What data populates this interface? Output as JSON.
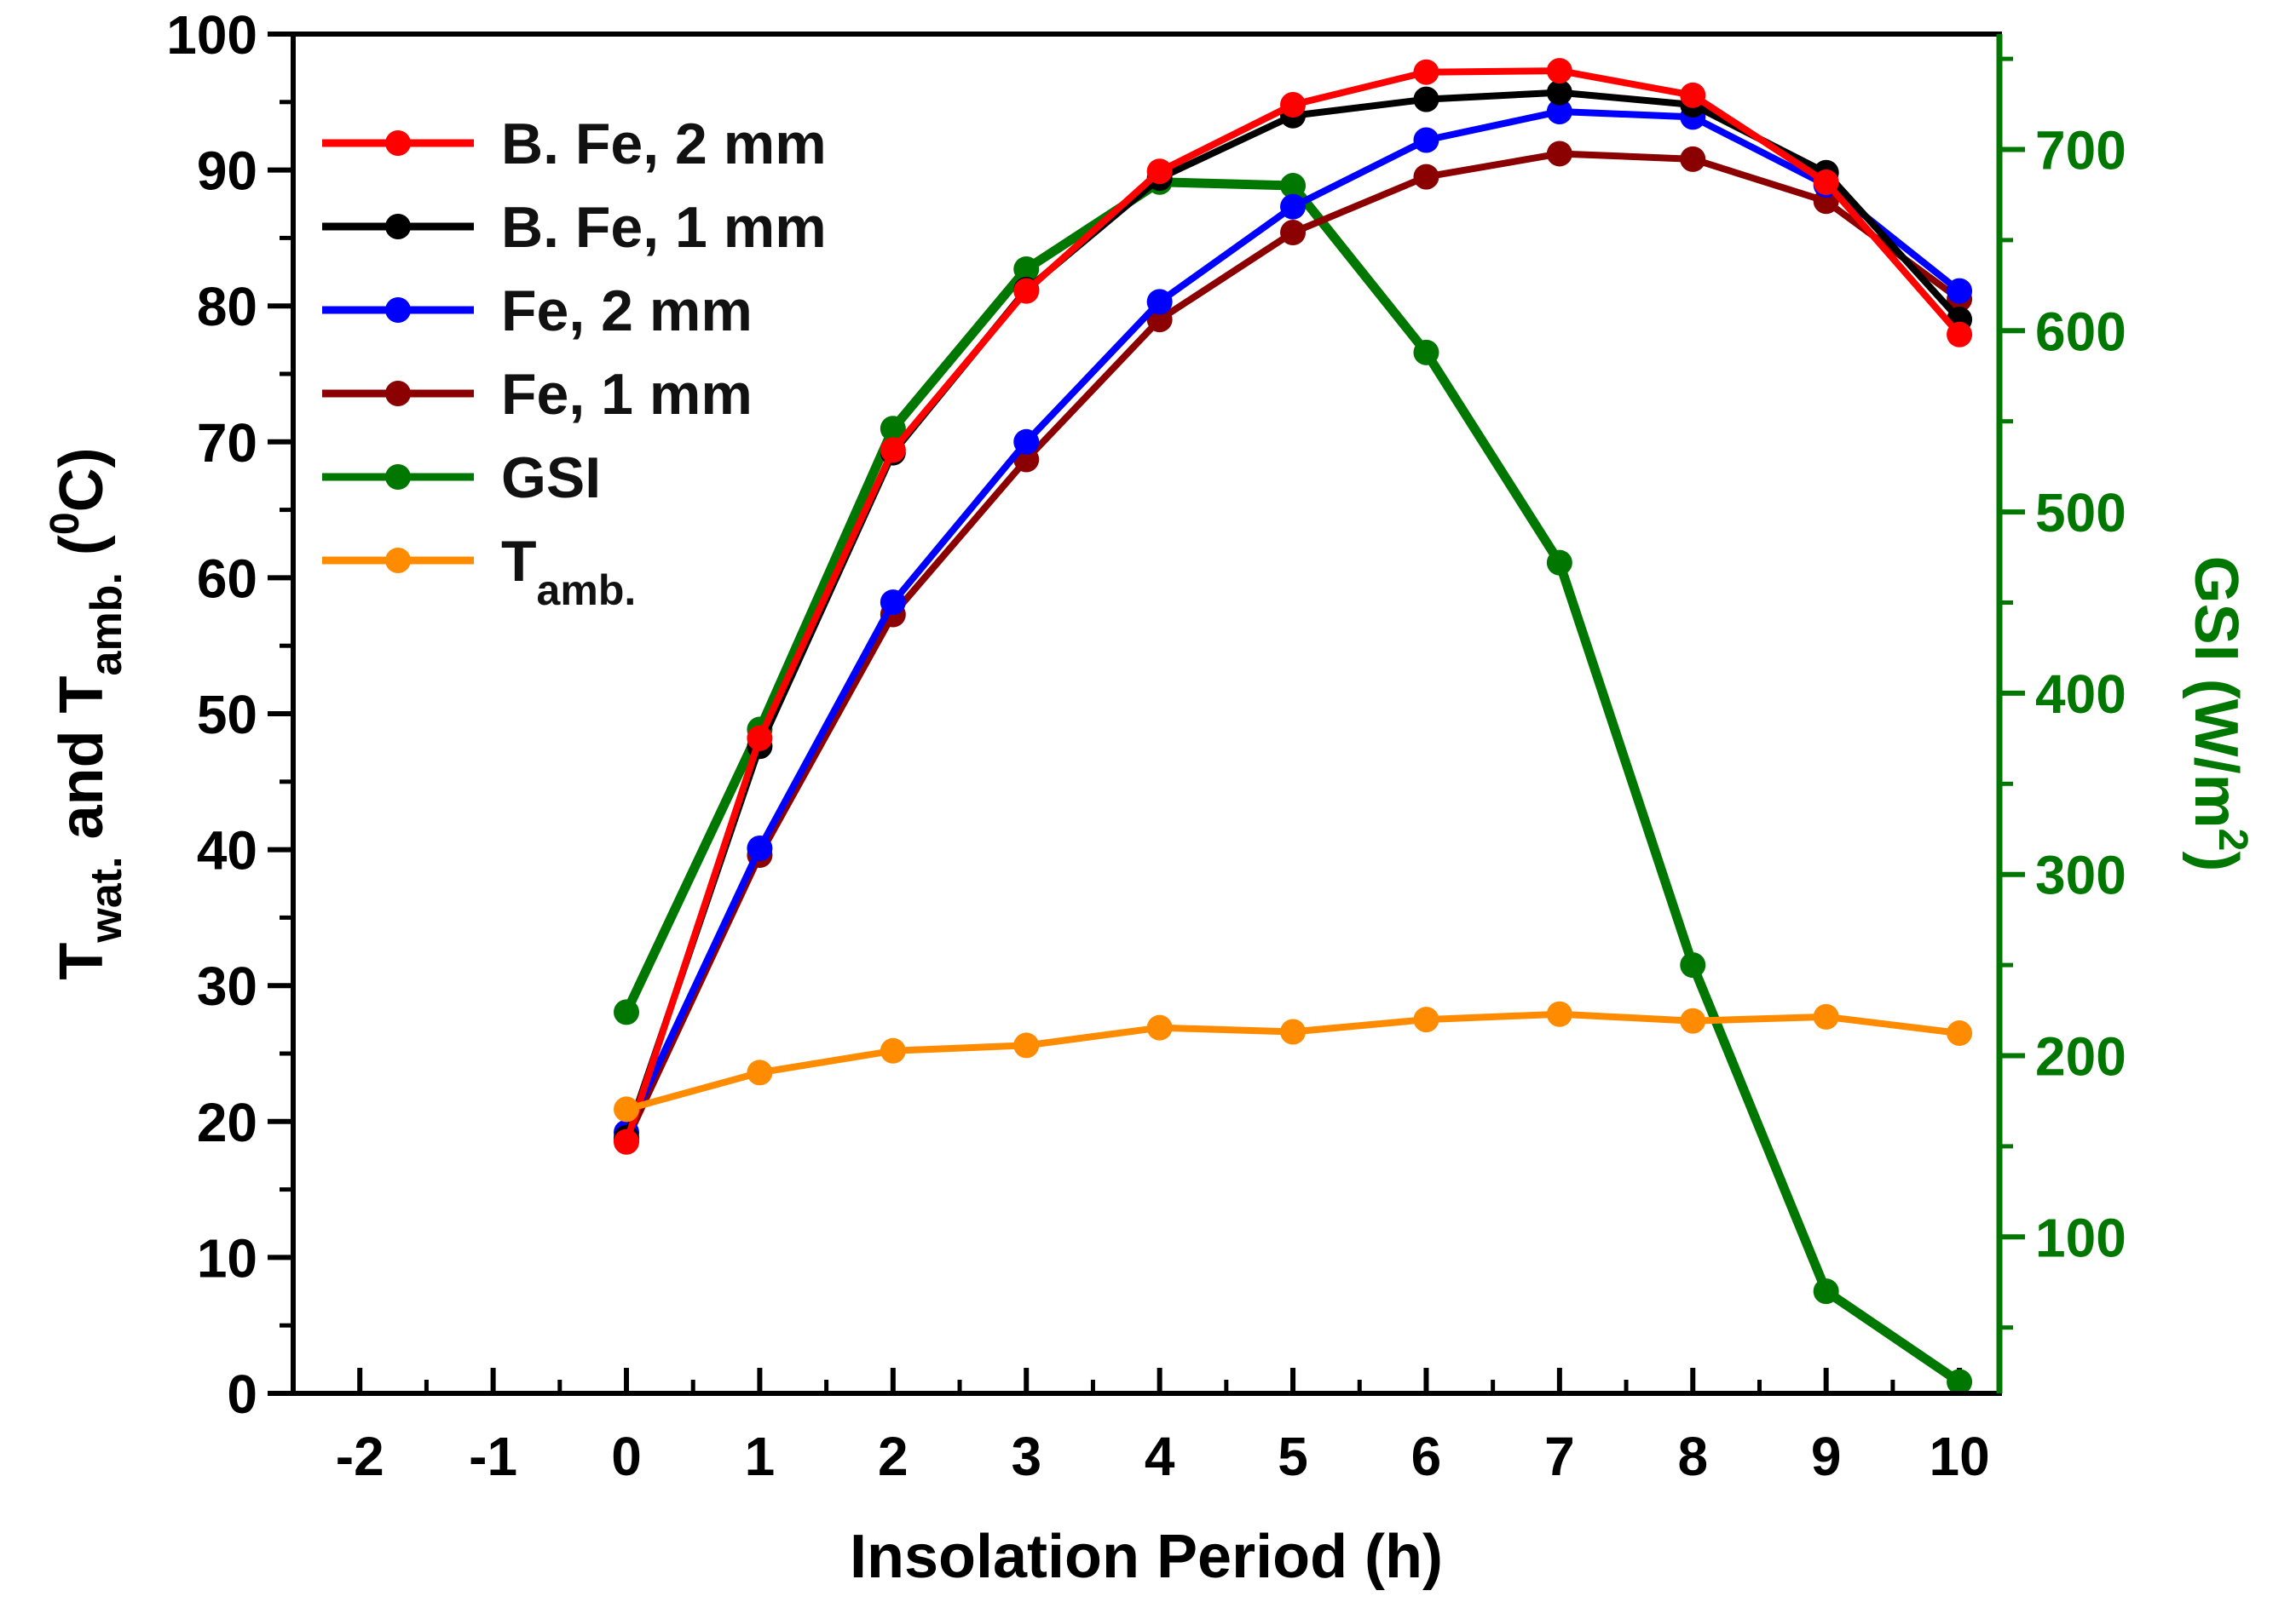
{
  "chart_data": {
    "type": "line",
    "title": "",
    "xlabel": "Insolation Period (h)",
    "ylabel": {
      "parts": [
        "T",
        "wat.",
        " and T",
        "amb.",
        " (",
        "0",
        "C)"
      ]
    },
    "y2label": {
      "parts": [
        "GSI (W/m",
        "2",
        ")"
      ]
    },
    "xlim": [
      -2.5,
      10.3
    ],
    "ylim": [
      0,
      100
    ],
    "y2lim": [
      13.67,
      763.67
    ],
    "x_ticks": [
      -2,
      -1,
      0,
      1,
      2,
      3,
      4,
      5,
      6,
      7,
      8,
      9,
      10
    ],
    "x_tick_labels": [
      "-2",
      "-1",
      "0",
      "1",
      "2",
      "3",
      "4",
      "5",
      "6",
      "7",
      "8",
      "9",
      "10"
    ],
    "y_ticks": [
      0,
      10,
      20,
      30,
      40,
      50,
      60,
      70,
      80,
      90,
      100
    ],
    "y_tick_labels": [
      "0",
      "10",
      "20",
      "30",
      "40",
      "50",
      "60",
      "70",
      "80",
      "90",
      "100"
    ],
    "y2_ticks": [
      100,
      200,
      300,
      400,
      500,
      600,
      700
    ],
    "y2_tick_labels": [
      "100",
      "200",
      "300",
      "400",
      "500",
      "600",
      "700"
    ],
    "legend_position": "top-left",
    "x": [
      0,
      1,
      2,
      3,
      4,
      5,
      6,
      7,
      8,
      9,
      10
    ],
    "series": [
      {
        "name": "B. Fe, 2 mm",
        "axis": "left",
        "color": "#ff0000",
        "values": [
          18.5,
          48.2,
          69.4,
          81.1,
          89.9,
          94.8,
          97.2,
          97.3,
          95.5,
          89.1,
          77.9
        ]
      },
      {
        "name": "B. Fe, 1 mm",
        "axis": "left",
        "color": "#000000",
        "values": [
          18.8,
          47.6,
          69.2,
          81.2,
          89.4,
          94.0,
          95.2,
          95.7,
          94.8,
          89.8,
          79.0
        ]
      },
      {
        "name": "Fe, 2 mm",
        "axis": "left",
        "color": "#0000ff",
        "values": [
          19.2,
          40.1,
          58.2,
          70.0,
          80.3,
          87.3,
          92.2,
          94.3,
          93.9,
          88.9,
          81.1
        ]
      },
      {
        "name": "Fe, 1 mm",
        "axis": "left",
        "color": "#8b0000",
        "values": [
          18.6,
          39.6,
          57.3,
          68.7,
          79.0,
          85.4,
          89.5,
          91.2,
          90.8,
          87.7,
          80.5
        ]
      },
      {
        "name": "GSI",
        "axis": "right",
        "color": "#007700",
        "values": [
          224,
          380,
          546,
          634,
          682,
          680,
          588,
          472,
          250,
          70,
          20
        ]
      },
      {
        "name": "T_amb.",
        "axis": "left",
        "color": "#ff8c00",
        "values": [
          20.9,
          23.6,
          25.2,
          25.6,
          26.9,
          26.6,
          27.5,
          27.9,
          27.4,
          27.7,
          26.5
        ]
      }
    ],
    "legend_entries": [
      {
        "text": "B. Fe, 2 mm",
        "sub": "",
        "color": "#ff0000"
      },
      {
        "text": "B. Fe, 1 mm",
        "sub": "",
        "color": "#000000"
      },
      {
        "text": "Fe, 2 mm",
        "sub": "",
        "color": "#0000ff"
      },
      {
        "text": "Fe, 1 mm",
        "sub": "",
        "color": "#8b0000"
      },
      {
        "text": "GSI",
        "sub": "",
        "color": "#007700"
      },
      {
        "text": "T",
        "sub": "amb.",
        "color": "#ff8c00"
      }
    ],
    "colors": {
      "axis": "#000000",
      "right_axis": "#007700"
    }
  }
}
